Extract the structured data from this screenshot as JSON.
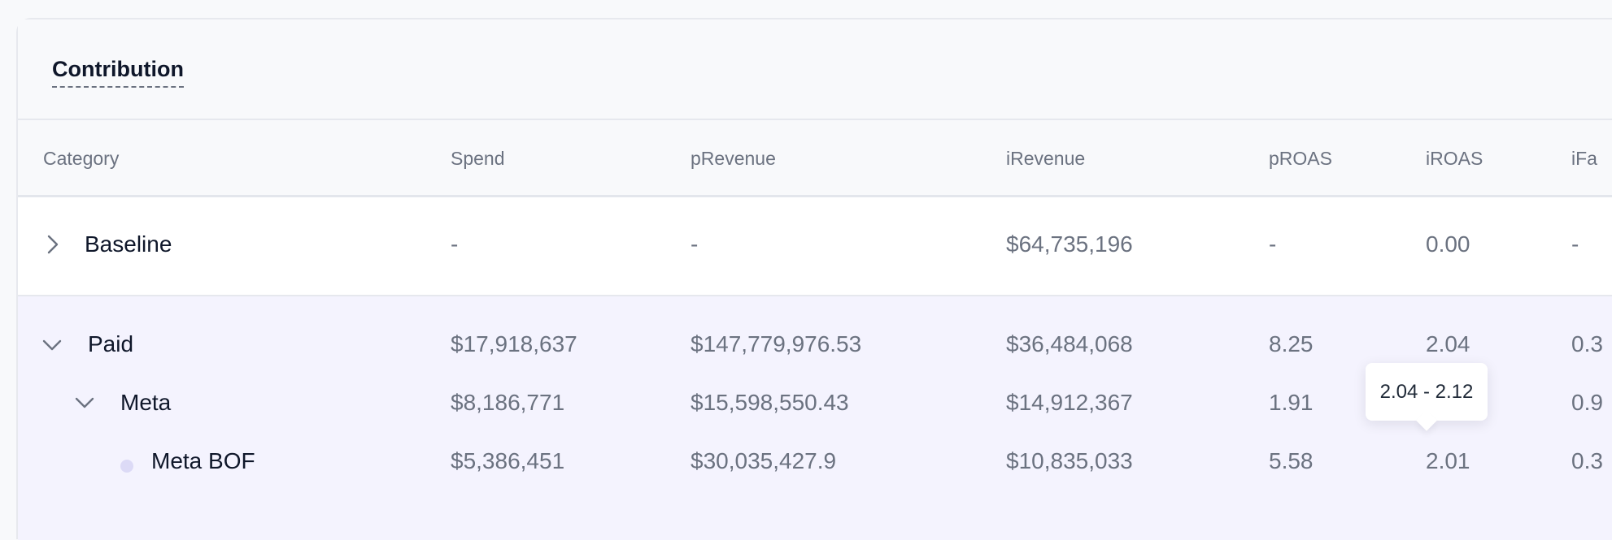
{
  "panel": {
    "title": "Contribution"
  },
  "table": {
    "columns": [
      "Category",
      "Spend",
      "pRevenue",
      "iRevenue",
      "pROAS",
      "iROAS",
      "iFa"
    ],
    "rows": {
      "baseline": {
        "name": "Baseline",
        "spend": "-",
        "prevenue": "-",
        "irevenue": "$64,735,196",
        "proas": "-",
        "iroas": "0.00",
        "ifa": "-"
      },
      "paid": {
        "name": "Paid",
        "spend": "$17,918,637",
        "prevenue": "$147,779,976.53",
        "irevenue": "$36,484,068",
        "proas": "8.25",
        "iroas": "2.04",
        "ifa": "0.3"
      },
      "meta": {
        "name": "Meta",
        "spend": "$8,186,771",
        "prevenue": "$15,598,550.43",
        "irevenue": "$14,912,367",
        "proas": "1.91",
        "iroas": "",
        "ifa": "0.9"
      },
      "meta_bof": {
        "name": "Meta BOF",
        "spend": "$5,386,451",
        "prevenue": "$30,035,427.9",
        "irevenue": "$10,835,033",
        "proas": "5.58",
        "iroas": "2.01",
        "ifa": "0.3"
      }
    }
  },
  "tooltip": {
    "text": "2.04 - 2.12"
  },
  "icons": {
    "collapsed": "chevron-right-icon",
    "expanded": "chevron-down-icon",
    "leaf": "dot-icon"
  },
  "colors": {
    "paid_section_bg": "#f4f3fe",
    "leaf_dot": "#dcdaf6"
  }
}
